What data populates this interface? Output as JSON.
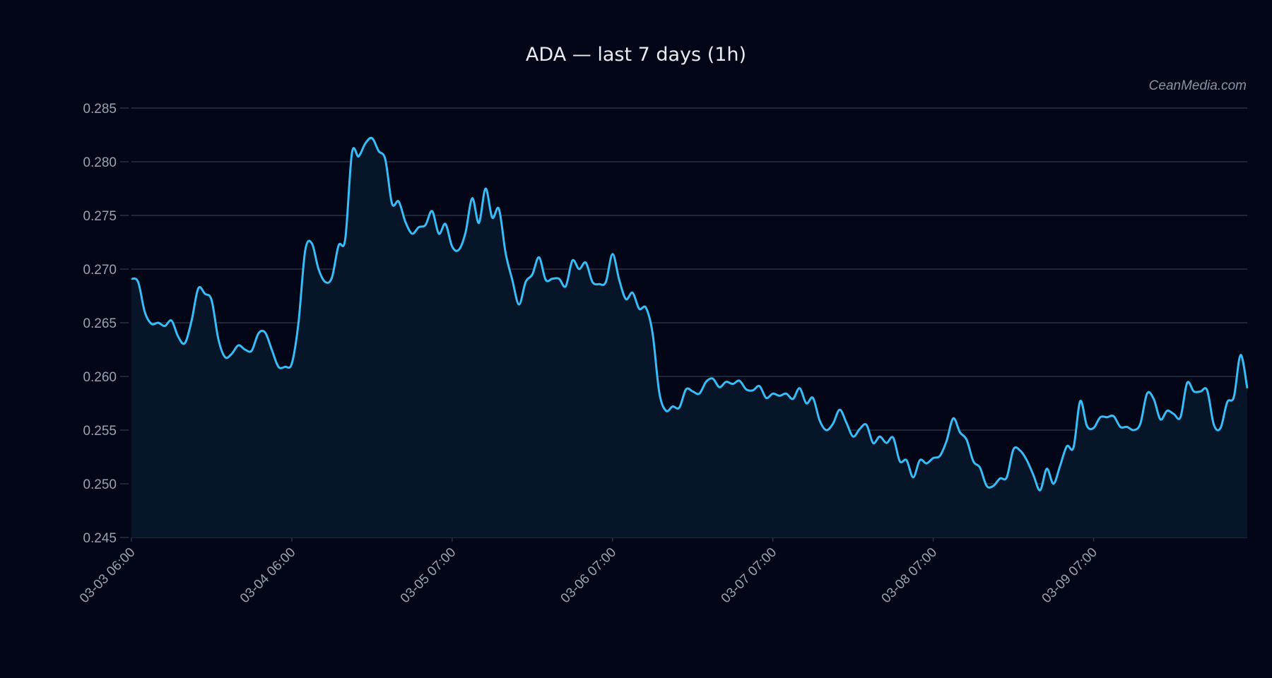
{
  "chart_data": {
    "type": "area",
    "title": "ADA — last 7 days (1h)",
    "watermark": "CeanMedia.com",
    "xlabel": "",
    "ylabel": "",
    "ylim": [
      0.245,
      0.285
    ],
    "yticks": [
      "0.245",
      "0.250",
      "0.255",
      "0.260",
      "0.265",
      "0.270",
      "0.275",
      "0.280",
      "0.285"
    ],
    "xticks": [
      {
        "index": 0,
        "label": "03-03 06:00"
      },
      {
        "index": 24,
        "label": "03-04 06:00"
      },
      {
        "index": 48,
        "label": "03-05 07:00"
      },
      {
        "index": 72,
        "label": "03-06 07:00"
      },
      {
        "index": 96,
        "label": "03-07 07:00"
      },
      {
        "index": 120,
        "label": "03-08 07:00"
      },
      {
        "index": 144,
        "label": "03-09 07:00"
      }
    ],
    "grid": true,
    "colors": {
      "background": "#020617",
      "line": "#38bdf8",
      "fill": "#061528",
      "grid": "#2b3442",
      "text": "#9aa3b0"
    },
    "values": [
      0.2691,
      0.2688,
      0.266,
      0.2649,
      0.265,
      0.2647,
      0.2652,
      0.2637,
      0.2631,
      0.2652,
      0.2682,
      0.2677,
      0.2671,
      0.2635,
      0.2618,
      0.2621,
      0.2629,
      0.2625,
      0.2624,
      0.264,
      0.2641,
      0.2625,
      0.2609,
      0.2609,
      0.2612,
      0.265,
      0.2717,
      0.2724,
      0.27,
      0.2688,
      0.2692,
      0.2722,
      0.2728,
      0.2808,
      0.2805,
      0.2817,
      0.2822,
      0.281,
      0.2802,
      0.2761,
      0.2763,
      0.2744,
      0.2733,
      0.2739,
      0.2741,
      0.2754,
      0.2733,
      0.2742,
      0.2721,
      0.2718,
      0.2734,
      0.2766,
      0.2743,
      0.2775,
      0.2748,
      0.2756,
      0.2715,
      0.269,
      0.2667,
      0.2688,
      0.2695,
      0.2711,
      0.269,
      0.2691,
      0.2691,
      0.2684,
      0.2708,
      0.27,
      0.2706,
      0.2688,
      0.2686,
      0.2688,
      0.2714,
      0.269,
      0.2672,
      0.2678,
      0.2663,
      0.2664,
      0.264,
      0.2585,
      0.2568,
      0.2572,
      0.2571,
      0.2588,
      0.2586,
      0.2584,
      0.2595,
      0.2598,
      0.259,
      0.2595,
      0.2593,
      0.2596,
      0.2588,
      0.2587,
      0.2591,
      0.258,
      0.2584,
      0.2582,
      0.2584,
      0.2579,
      0.2589,
      0.2575,
      0.258,
      0.2559,
      0.255,
      0.2556,
      0.2569,
      0.2557,
      0.2544,
      0.2551,
      0.2555,
      0.2538,
      0.2544,
      0.2538,
      0.2543,
      0.2521,
      0.2522,
      0.2506,
      0.2522,
      0.2519,
      0.2524,
      0.2526,
      0.254,
      0.2561,
      0.2548,
      0.2541,
      0.2521,
      0.2515,
      0.2498,
      0.2498,
      0.2505,
      0.2506,
      0.2532,
      0.2531,
      0.2522,
      0.2508,
      0.2494,
      0.2514,
      0.25,
      0.2517,
      0.2535,
      0.2534,
      0.2577,
      0.2554,
      0.2552,
      0.2562,
      0.2562,
      0.2563,
      0.2553,
      0.2553,
      0.255,
      0.2556,
      0.2584,
      0.2579,
      0.256,
      0.2568,
      0.2565,
      0.2562,
      0.2594,
      0.2586,
      0.2586,
      0.2587,
      0.2555,
      0.2552,
      0.2576,
      0.2581,
      0.262,
      0.2589
    ]
  }
}
